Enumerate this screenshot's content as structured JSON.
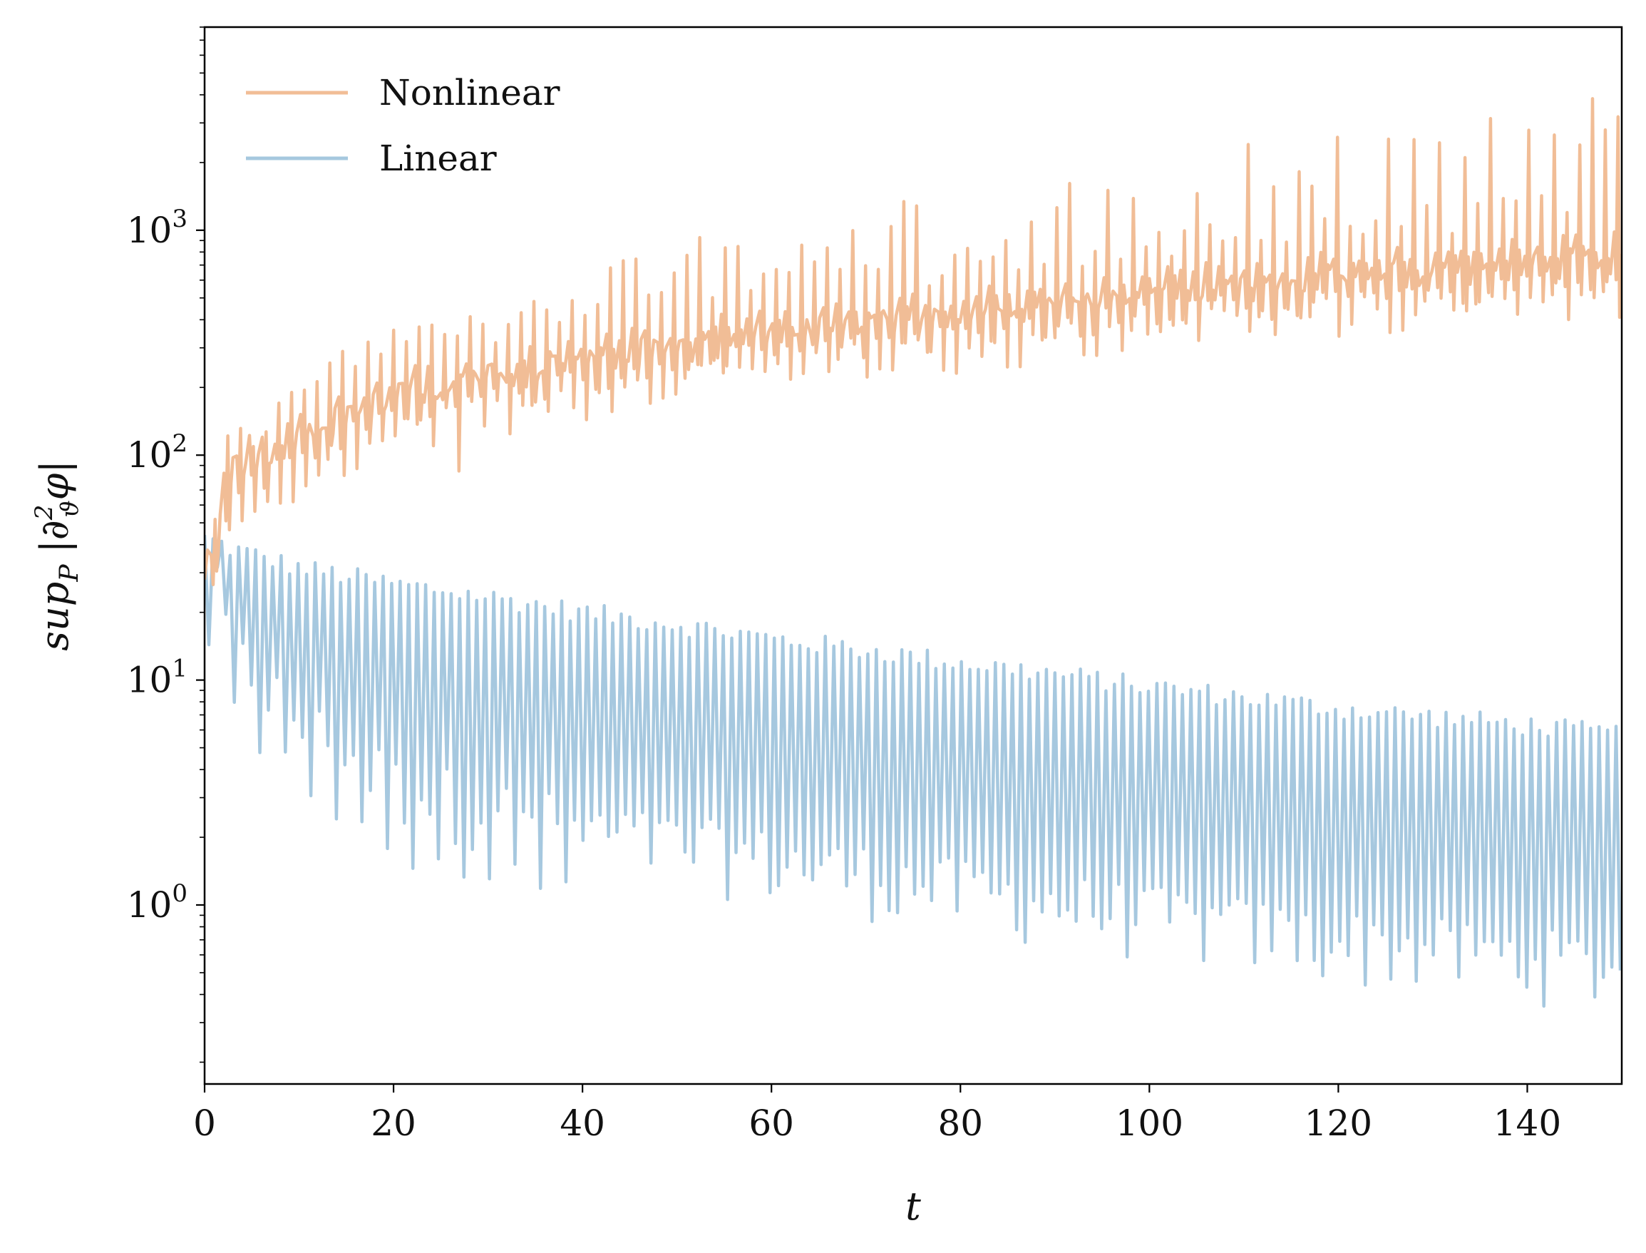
{
  "chart_data": {
    "type": "line",
    "title": "",
    "xlabel": "t",
    "ylabel": "sup_P |∂²_ϑ φ|",
    "ylabel_parts": {
      "sup": "sup",
      "sub": "P",
      "expr": "|∂",
      "sup2": "2",
      "sub2": "ϑ",
      "tail": "φ|"
    },
    "xlim": [
      0,
      150
    ],
    "ylim": [
      0.16,
      8000
    ],
    "yscale": "log",
    "xticks": [
      0,
      20,
      40,
      60,
      80,
      100,
      120,
      140
    ],
    "xtick_labels": [
      "0",
      "20",
      "40",
      "60",
      "80",
      "100",
      "120",
      "140"
    ],
    "yticks": [
      1,
      10,
      100,
      1000
    ],
    "ytick_labels": [
      {
        "base": "10",
        "exp": "0"
      },
      {
        "base": "10",
        "exp": "1"
      },
      {
        "base": "10",
        "exp": "2"
      },
      {
        "base": "10",
        "exp": "3"
      }
    ],
    "legend": {
      "location": "upper-left",
      "entries": [
        "Nonlinear",
        "Linear"
      ]
    },
    "series": [
      {
        "name": "Nonlinear",
        "color": "#f1bd96",
        "trend_t": [
          0,
          3,
          6,
          10,
          15,
          20,
          30,
          40,
          50,
          60,
          70,
          80,
          90,
          100,
          110,
          120,
          130,
          140,
          150
        ],
        "trend_baseline": [
          30,
          90,
          100,
          120,
          150,
          180,
          220,
          260,
          300,
          340,
          380,
          420,
          470,
          520,
          560,
          600,
          650,
          700,
          750
        ],
        "spike_peaks": [
          120,
          170,
          300,
          420,
          600,
          700,
          900,
          1100,
          1300,
          1600,
          1800,
          2100,
          2500,
          2900,
          3200,
          3500,
          4000,
          4500
        ],
        "spike_period": 1.35,
        "dip_minimum_t": 26,
        "dip_minimum_value": 85
      },
      {
        "name": "Linear",
        "color": "#a6c8df",
        "trend_t": [
          0,
          3,
          10,
          20,
          40,
          60,
          80,
          100,
          120,
          150
        ],
        "upper_envelope": [
          45,
          40,
          33,
          28,
          21,
          16,
          12.5,
          9.8,
          7.8,
          6
        ],
        "lower_envelope": [
          15,
          6,
          3,
          1.6,
          1,
          0.75,
          0.55,
          0.42,
          0.33,
          0.25
        ],
        "oscillation_period": 0.9
      }
    ]
  }
}
